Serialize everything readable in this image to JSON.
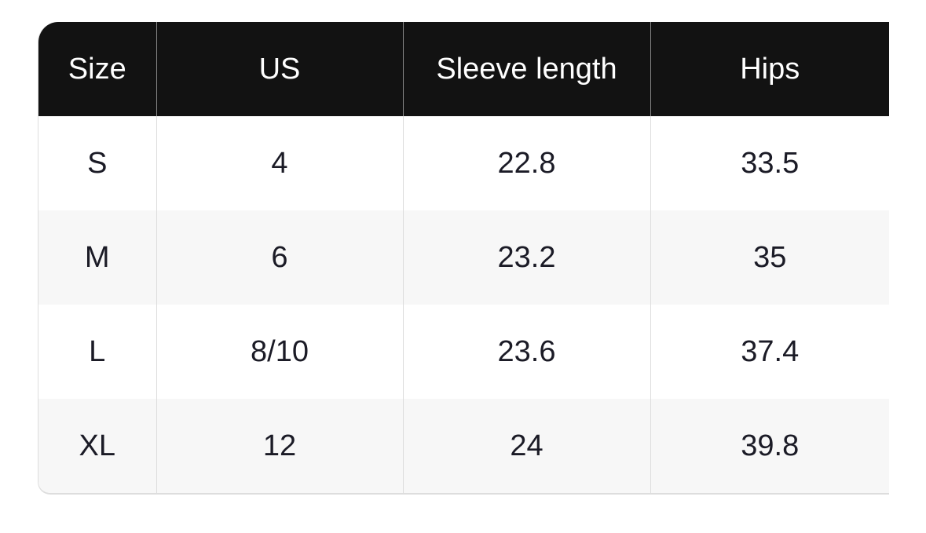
{
  "table": {
    "headers": [
      "Size",
      "US",
      "Sleeve length",
      "Hips"
    ],
    "rows": [
      [
        "S",
        "4",
        "22.8",
        "33.5"
      ],
      [
        "M",
        "6",
        "23.2",
        "35"
      ],
      [
        "L",
        "8/10",
        "23.6",
        "37.4"
      ],
      [
        "XL",
        "12",
        "24",
        "39.8"
      ]
    ],
    "colors": {
      "header_bg": "#121212",
      "header_text": "#ffffff",
      "stripe_bg": "#f7f7f7",
      "cell_text": "#1b1b26"
    }
  }
}
